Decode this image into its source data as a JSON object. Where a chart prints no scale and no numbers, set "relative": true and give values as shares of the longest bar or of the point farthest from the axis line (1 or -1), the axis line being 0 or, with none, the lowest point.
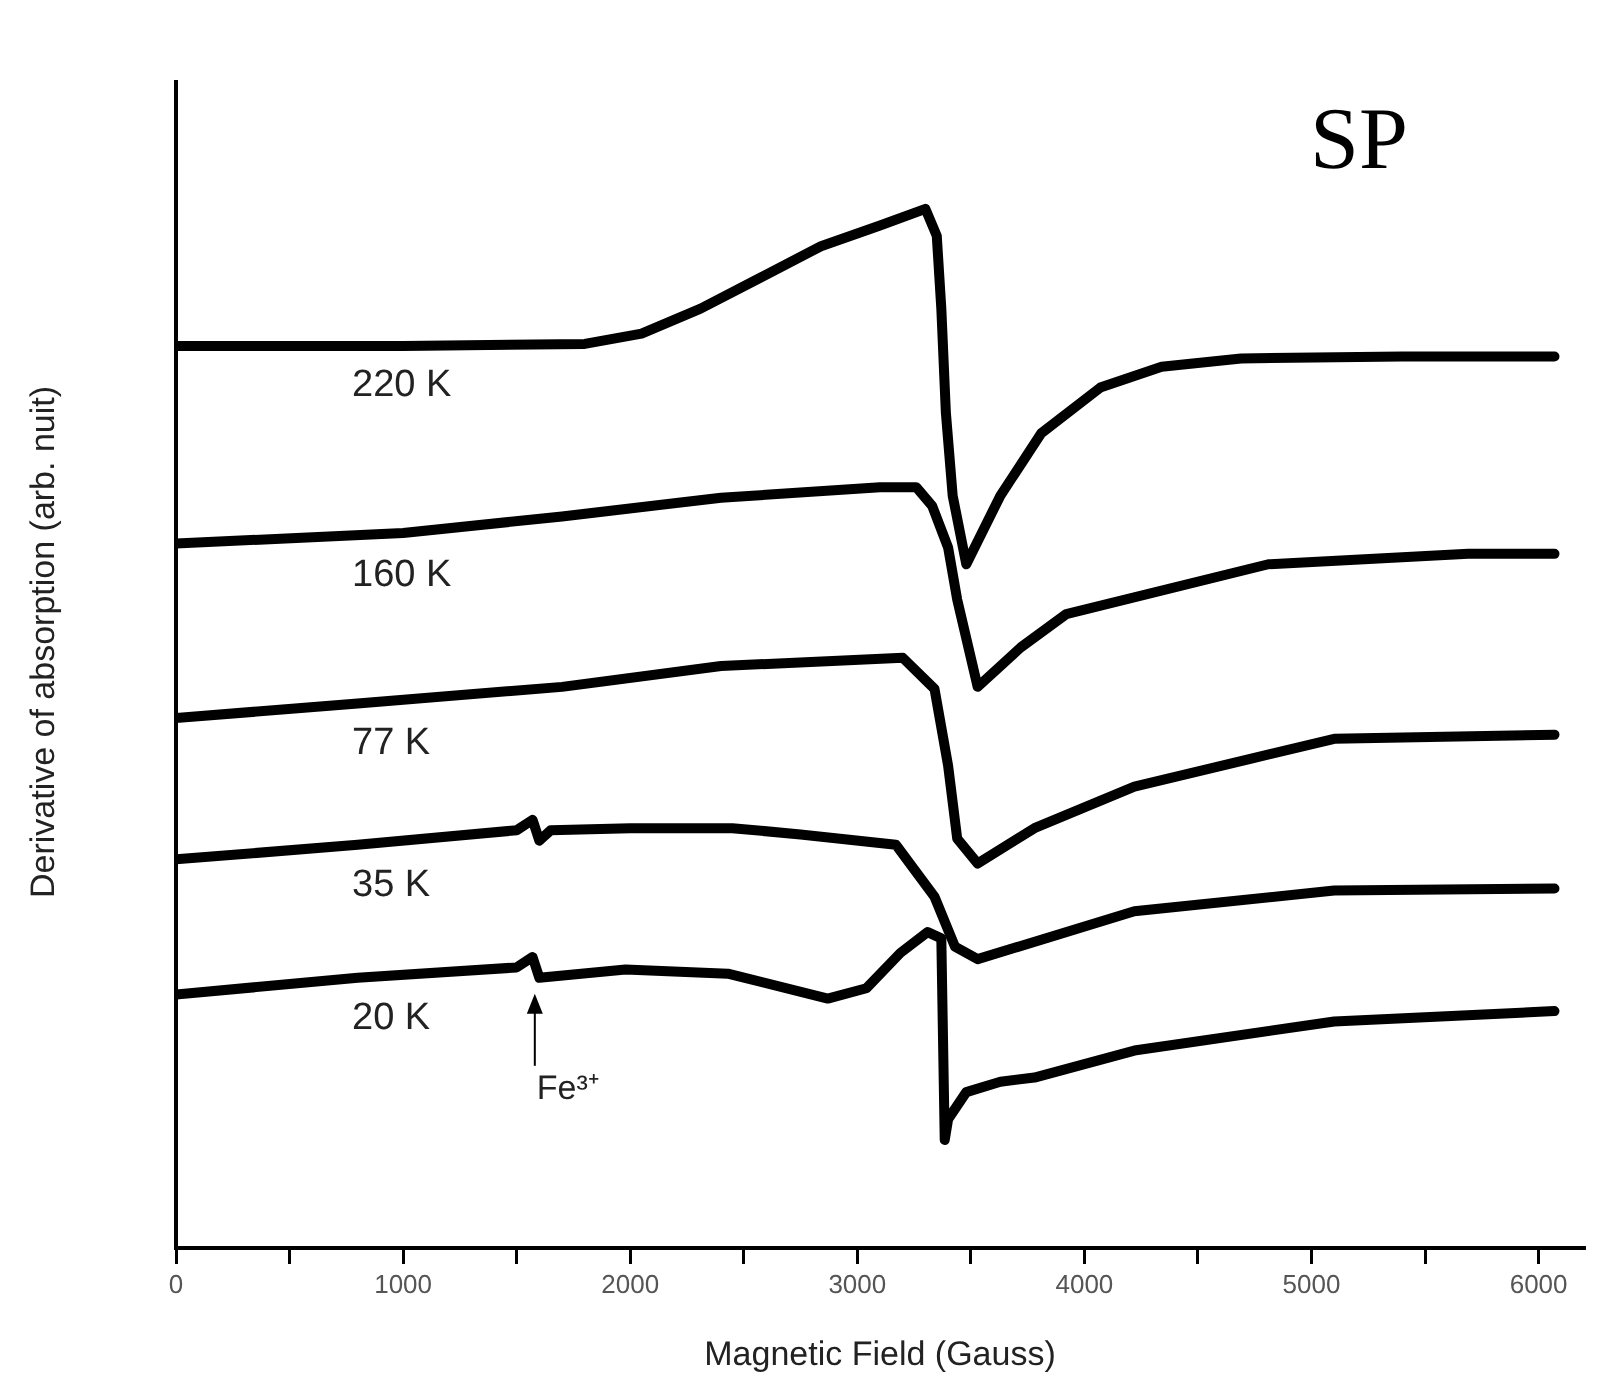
{
  "chart_data": {
    "type": "line",
    "relative": true,
    "xlabel": "Magnetic Field (Gauss)",
    "ylabel": "Derivative of absorption (arb. nuit)",
    "xlim": [
      0,
      6200
    ],
    "xticks": [
      0,
      {
        "value": 500,
        "label": null
      },
      1000,
      {
        "value": 1500,
        "label": null
      },
      2000,
      {
        "value": 2500,
        "label": null
      },
      3000,
      {
        "value": 3500,
        "label": null
      },
      4000,
      {
        "value": 4500,
        "label": null
      },
      5000,
      {
        "value": 5500,
        "label": null
      },
      6000
    ],
    "grid": false,
    "legend": false,
    "annotations": [
      "SP",
      {
        "text": "Fe³⁺",
        "x": 1580,
        "y": 0.26
      }
    ],
    "series": [
      {
        "name": "220 K",
        "color": "#000000",
        "x": [
          0,
          1000,
          1800,
          2050,
          2310,
          2575,
          2840,
          3100,
          3300,
          3350,
          3370,
          3390,
          3420,
          3480,
          3630,
          3810,
          4070,
          4340,
          4690,
          5400,
          6070
        ],
        "values": [
          0.868,
          0.868,
          0.87,
          0.88,
          0.904,
          0.934,
          0.964,
          0.984,
          1.0,
          0.974,
          0.904,
          0.804,
          0.724,
          0.658,
          0.724,
          0.784,
          0.828,
          0.848,
          0.856,
          0.858,
          0.858
        ]
      },
      {
        "name": "160 K",
        "color": "#000000",
        "x": [
          0,
          1000,
          1700,
          2400,
          3100,
          3260,
          3330,
          3400,
          3440,
          3530,
          3720,
          3920,
          4810,
          5690,
          6070
        ],
        "values": [
          0.678,
          0.688,
          0.704,
          0.722,
          0.732,
          0.732,
          0.714,
          0.674,
          0.624,
          0.54,
          0.578,
          0.61,
          0.658,
          0.668,
          0.668
        ]
      },
      {
        "name": "77 K",
        "color": "#000000",
        "x": [
          0,
          800,
          1700,
          2400,
          3200,
          3340,
          3400,
          3440,
          3530,
          3780,
          4220,
          5100,
          6070
        ],
        "values": [
          0.51,
          0.524,
          0.54,
          0.56,
          0.568,
          0.538,
          0.464,
          0.394,
          0.37,
          0.404,
          0.444,
          0.49,
          0.494
        ]
      },
      {
        "name": "35 K",
        "color": "#000000",
        "x": [
          0,
          800,
          1500,
          1570,
          1600,
          1650,
          2000,
          2450,
          2750,
          3170,
          3340,
          3430,
          3530,
          4220,
          5100,
          6070
        ],
        "values": [
          0.374,
          0.388,
          0.402,
          0.412,
          0.392,
          0.402,
          0.404,
          0.404,
          0.398,
          0.388,
          0.338,
          0.29,
          0.278,
          0.324,
          0.344,
          0.346
        ]
      },
      {
        "name": "20 K",
        "color": "#000000",
        "x": [
          0,
          800,
          1500,
          1570,
          1600,
          1980,
          2430,
          2870,
          3040,
          3190,
          3310,
          3370,
          3385,
          3400,
          3480,
          3630,
          3780,
          4220,
          5100,
          6070
        ],
        "values": [
          0.244,
          0.26,
          0.27,
          0.28,
          0.26,
          0.268,
          0.264,
          0.24,
          0.25,
          0.284,
          0.304,
          0.298,
          0.104,
          0.124,
          0.15,
          0.16,
          0.164,
          0.19,
          0.218,
          0.228
        ]
      }
    ]
  }
}
